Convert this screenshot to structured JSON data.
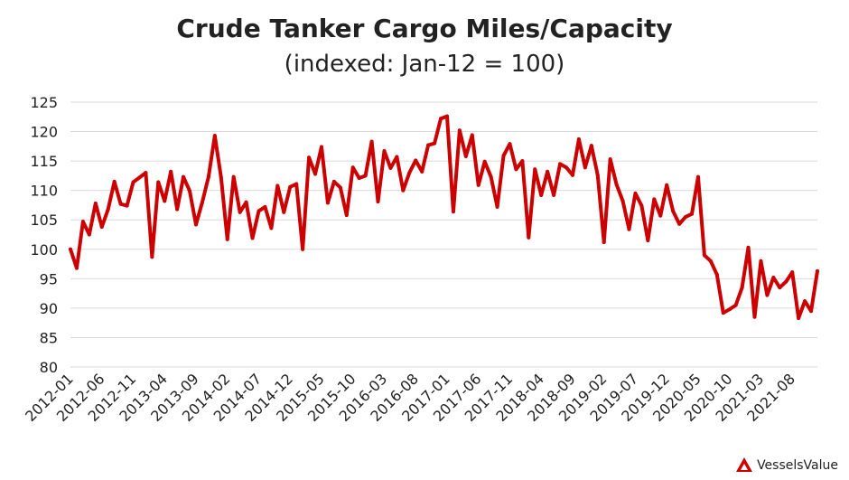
{
  "chart_data": {
    "type": "line",
    "title": "Crude Tanker Cargo Miles/Capacity",
    "subtitle": "(indexed: Jan-12 = 100)",
    "xlabel": "",
    "ylabel": "",
    "ylim": [
      80,
      125
    ],
    "yticks": [
      80,
      85,
      90,
      95,
      100,
      105,
      110,
      115,
      120,
      125
    ],
    "xtick_labels": [
      "2012-01",
      "2012-06",
      "2012-11",
      "2013-04",
      "2013-09",
      "2014-02",
      "2014-07",
      "2014-12",
      "2015-05",
      "2015-10",
      "2016-03",
      "2016-08",
      "2017-01",
      "2017-06",
      "2017-11",
      "2018-04",
      "2018-09",
      "2019-02",
      "2019-07",
      "2019-12",
      "2020-05",
      "2020-10",
      "2021-03",
      "2021-08"
    ],
    "grid": "horizontal",
    "line_color": "#cc0000",
    "series": [
      {
        "start": "2012-01",
        "values": [
          100,
          96.8,
          104.7,
          102.5,
          107.8,
          103.8,
          106.8,
          111.5,
          107.7,
          107.4,
          111.4,
          112.2,
          113,
          98.7,
          111.4,
          108.2,
          113.2,
          106.8,
          112.3,
          109.9,
          104.2,
          108,
          112.3,
          119.3,
          112.2,
          101.7,
          112.3,
          106.3,
          108,
          101.9,
          106.5,
          107.2,
          103.6,
          110.8,
          106.3,
          110.6,
          111.1,
          100,
          115.6,
          112.8,
          117.4,
          107.9,
          111.5,
          110.5,
          105.8,
          113.9,
          112.1,
          112.5,
          118.3,
          108.1,
          116.7,
          113.8,
          115.7,
          110,
          113,
          115.1,
          113.2,
          117.7,
          118,
          122.2,
          122.6,
          106.4,
          120.2,
          115.8,
          119.4,
          110.9,
          114.9,
          112.3,
          107.2,
          115.9,
          117.9,
          113.6,
          115,
          102,
          113.6,
          109.2,
          113.2,
          109.2,
          114.5,
          113.9,
          112.6,
          118.7,
          113.9,
          117.6,
          112.6,
          101.2,
          115.3,
          111,
          108.2,
          103.4,
          109.5,
          107.4,
          101.5,
          108.5,
          105.7,
          110.9,
          106.5,
          104.3,
          105.5,
          106,
          112.3,
          99,
          98,
          95.7,
          89.2,
          89.8,
          90.5,
          93.5,
          100.3,
          88.5,
          98,
          92.2,
          95.2,
          93.5,
          94.5,
          96.1,
          88.3,
          91.2,
          89.5,
          96.3
        ]
      }
    ]
  },
  "brand": {
    "text": "VesselsValue",
    "color": "#cc0000"
  }
}
